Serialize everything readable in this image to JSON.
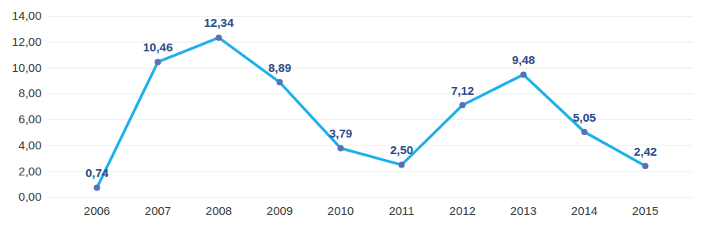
{
  "chart_data": {
    "type": "line",
    "categories": [
      "2006",
      "2007",
      "2008",
      "2009",
      "2010",
      "2011",
      "2012",
      "2013",
      "2014",
      "2015"
    ],
    "values": [
      0.74,
      10.46,
      12.34,
      8.89,
      3.79,
      2.5,
      7.12,
      9.48,
      5.05,
      2.42
    ],
    "value_labels": [
      "0,74",
      "10,46",
      "12,34",
      "8,89",
      "3,79",
      "2,50",
      "7,12",
      "9,48",
      "5,05",
      "2,42"
    ],
    "color": "#1fb0ea",
    "marker": "circle",
    "data_labels": true,
    "grid": true,
    "ylim": [
      0,
      14
    ],
    "yticks": [
      {
        "value": 0,
        "label": "0,00"
      },
      {
        "value": 2,
        "label": "2,00"
      },
      {
        "value": 4,
        "label": "4,00"
      },
      {
        "value": 6,
        "label": "6,00"
      },
      {
        "value": 8,
        "label": "8,00"
      },
      {
        "value": 10,
        "label": "10,00"
      },
      {
        "value": 12,
        "label": "12,00"
      },
      {
        "value": 14,
        "label": "14,00"
      }
    ]
  }
}
